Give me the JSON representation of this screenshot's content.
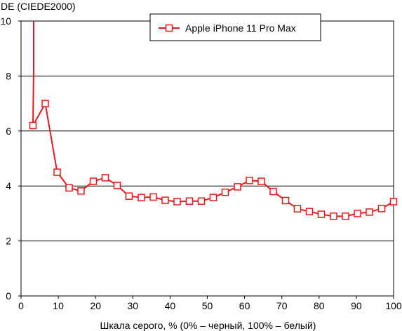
{
  "chart_data": {
    "type": "line",
    "title": "",
    "ylabel": "DE (CIEDE2000)",
    "xlabel": "Шкала серого, % (0% – черный, 100% – белый)",
    "xlim": [
      0,
      100
    ],
    "ylim": [
      0,
      10
    ],
    "xticks": [
      0,
      10,
      20,
      30,
      40,
      50,
      60,
      70,
      80,
      90,
      100
    ],
    "yticks": [
      0,
      2,
      4,
      6,
      8,
      10
    ],
    "grid": "horizontal",
    "legend_position": "top-right",
    "series": [
      {
        "name": "Apple iPhone 11 Pro Max",
        "color": "#e8191e",
        "marker": "square-open",
        "x": [
          3.2,
          6.5,
          9.7,
          12.9,
          16.1,
          19.4,
          22.6,
          25.8,
          29.0,
          32.3,
          35.5,
          38.7,
          41.9,
          45.2,
          48.4,
          51.6,
          54.8,
          58.1,
          61.3,
          64.5,
          67.7,
          71.0,
          74.2,
          77.4,
          80.6,
          83.9,
          87.1,
          90.3,
          93.5,
          96.8,
          100.0
        ],
        "y": [
          6.2,
          7.0,
          4.5,
          3.93,
          3.82,
          4.17,
          4.3,
          4.02,
          3.63,
          3.58,
          3.6,
          3.48,
          3.43,
          3.45,
          3.45,
          3.58,
          3.77,
          3.97,
          4.2,
          4.17,
          3.8,
          3.47,
          3.17,
          3.07,
          2.97,
          2.9,
          2.9,
          3.0,
          3.05,
          3.18,
          3.43
        ]
      }
    ]
  }
}
